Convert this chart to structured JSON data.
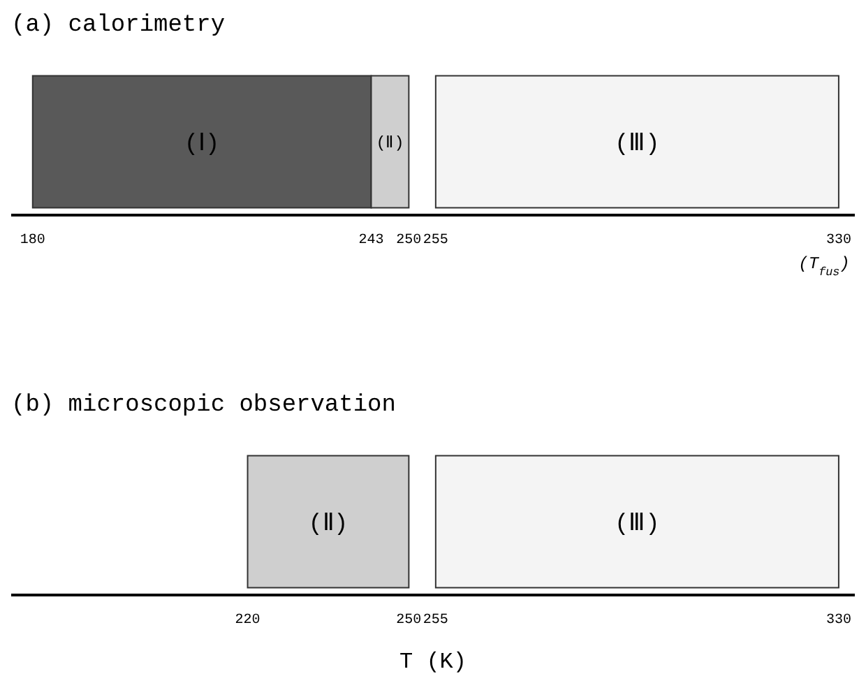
{
  "chart_data": [
    {
      "type": "bar",
      "orientation": "horizontal",
      "title": "(a) calorimetry",
      "categories": [
        null
      ],
      "xlim": [
        176,
        333
      ],
      "xticks": [
        180,
        243,
        250,
        255,
        330
      ],
      "tick_labels": "x",
      "series": [
        {
          "name": "(Ⅰ)",
          "color": "#595959",
          "values": [
            63
          ],
          "base": [
            180
          ]
        },
        {
          "name": "(Ⅱ)",
          "color": "#cfcfcf",
          "values": [
            7
          ],
          "base": [
            243
          ]
        },
        {
          "name": "(Ⅲ)",
          "color": "#f4f4f4",
          "values": [
            75
          ],
          "base": [
            255
          ]
        }
      ],
      "annotations": [
        "(T$_{fus}$)"
      ]
    },
    {
      "type": "bar",
      "orientation": "horizontal",
      "title": "(b) microscopic observation",
      "categories": [
        null
      ],
      "xlim": [
        176,
        333
      ],
      "xticks": [
        220,
        250,
        255,
        330
      ],
      "tick_labels": "x",
      "xlabel": "T (K)",
      "series": [
        {
          "name": "(Ⅱ)",
          "color": "#cfcfcf",
          "values": [
            30
          ],
          "base": [
            220
          ]
        },
        {
          "name": "(Ⅲ)",
          "color": "#f4f4f4",
          "values": [
            75
          ],
          "base": [
            255
          ]
        }
      ]
    }
  ]
}
